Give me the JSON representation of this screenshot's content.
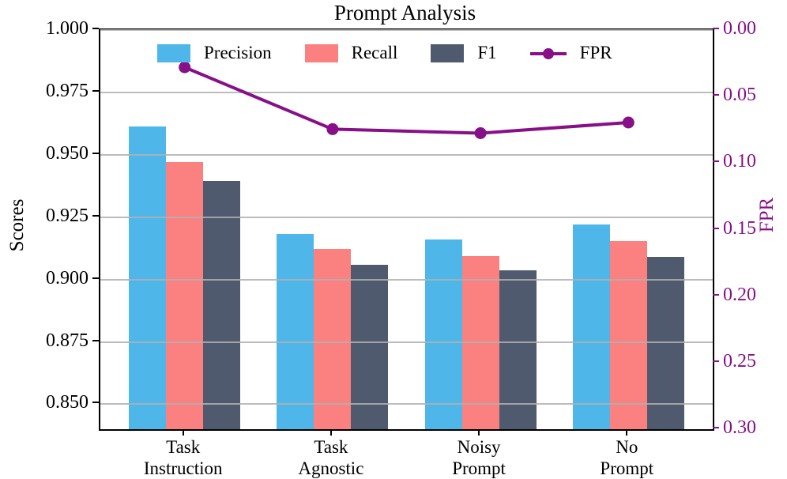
{
  "chart_data": {
    "type": "bar",
    "title": "Prompt Analysis",
    "categories": [
      [
        "Task",
        "Instruction"
      ],
      [
        "Task",
        "Agnostic"
      ],
      [
        "Noisy",
        "Prompt"
      ],
      [
        "No",
        "Prompt"
      ]
    ],
    "series": [
      {
        "name": "Precision",
        "type": "bar",
        "axis": "left",
        "color": "#4FB6EA",
        "values": [
          0.9615,
          0.9183,
          0.916,
          0.9222
        ]
      },
      {
        "name": "Recall",
        "type": "bar",
        "axis": "left",
        "color": "#FB8181",
        "values": [
          0.947,
          0.9123,
          0.9093,
          0.9155
        ]
      },
      {
        "name": "F1",
        "type": "bar",
        "axis": "left",
        "color": "#505A6E",
        "values": [
          0.9395,
          0.906,
          0.9037,
          0.9092
        ]
      },
      {
        "name": "FPR",
        "type": "line",
        "axis": "right",
        "color": "#870F87",
        "values": [
          0.028,
          0.0745,
          0.0775,
          0.0695
        ]
      }
    ],
    "left_axis": {
      "label": "Scores",
      "ticks": [
        1.0,
        0.975,
        0.95,
        0.925,
        0.9,
        0.875,
        0.85
      ],
      "tick_labels": [
        "1.000",
        "0.975",
        "0.950",
        "0.925",
        "0.900",
        "0.875",
        "0.850"
      ],
      "min": 0.84,
      "max": 1.0
    },
    "right_axis": {
      "label": "FPR",
      "ticks": [
        0.0,
        0.05,
        0.1,
        0.15,
        0.2,
        0.25,
        0.3
      ],
      "tick_labels": [
        "0.00",
        "0.05",
        "0.10",
        "0.15",
        "0.20",
        "0.25",
        "0.30"
      ],
      "min": 0.0,
      "max": 0.3,
      "direction": "inverted",
      "color": "#870F87"
    },
    "grid": true,
    "grid_color": "#b0b0b0",
    "legend_position": "upper-center-inside"
  }
}
